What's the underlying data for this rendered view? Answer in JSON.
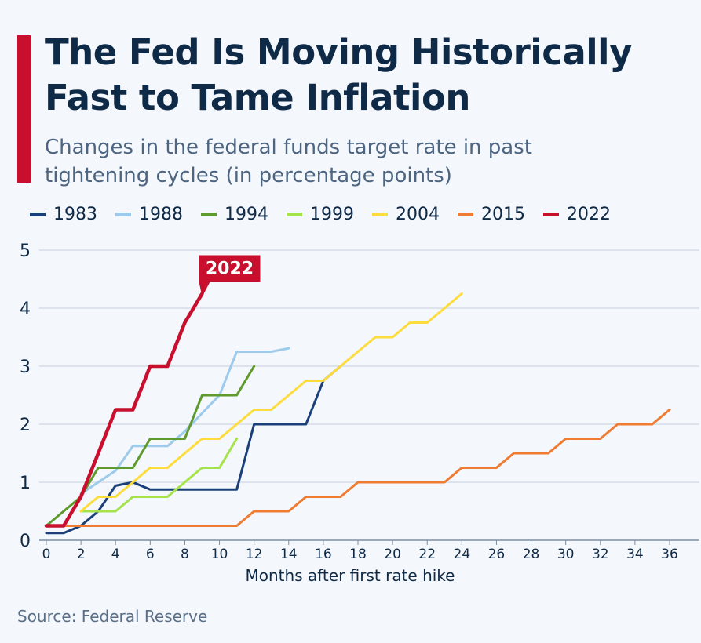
{
  "header": {
    "title": "The Fed Is Moving Historically Fast to Tame Inflation",
    "subtitle": "Changes in the federal funds target rate in past tightening cycles (in percentage points)"
  },
  "footer": {
    "source": "Source: Federal Reserve"
  },
  "chart_data": {
    "type": "line",
    "xlabel": "Months after first rate hike",
    "ylabel": "",
    "xlim": [
      0,
      36
    ],
    "ylim": [
      0,
      5
    ],
    "x_ticks": [
      0,
      2,
      4,
      6,
      8,
      10,
      12,
      14,
      16,
      18,
      20,
      22,
      24,
      26,
      28,
      30,
      32,
      34,
      36
    ],
    "y_ticks": [
      0,
      1,
      2,
      3,
      4,
      5
    ],
    "grid": "horizontal",
    "legend_placement": "top",
    "annotation": {
      "text": "2022",
      "series": "2022",
      "color": "#c8102e"
    },
    "series": [
      {
        "name": "1983",
        "color": "#1b4079",
        "points": [
          [
            0,
            0.125
          ],
          [
            1,
            0.125
          ],
          [
            2,
            0.25
          ],
          [
            3,
            0.5
          ],
          [
            4,
            0.94
          ],
          [
            5,
            1.0
          ],
          [
            6,
            0.875
          ],
          [
            7,
            0.875
          ],
          [
            8,
            0.875
          ],
          [
            9,
            0.875
          ],
          [
            10,
            0.875
          ],
          [
            11,
            0.875
          ],
          [
            12,
            2.0
          ],
          [
            13,
            2.0
          ],
          [
            14,
            2.0
          ],
          [
            15,
            2.0
          ],
          [
            16,
            2.75
          ],
          [
            17,
            3.0
          ]
        ]
      },
      {
        "name": "1988",
        "color": "#9ecbec",
        "points": [
          [
            2,
            0.8
          ],
          [
            3,
            1.0
          ],
          [
            4,
            1.2
          ],
          [
            5,
            1.625
          ],
          [
            6,
            1.625
          ],
          [
            7,
            1.625
          ],
          [
            8,
            1.875
          ],
          [
            9,
            2.19
          ],
          [
            10,
            2.5
          ],
          [
            11,
            3.25
          ],
          [
            12,
            3.25
          ],
          [
            13,
            3.25
          ],
          [
            14,
            3.31
          ]
        ]
      },
      {
        "name": "1994",
        "color": "#5e9a2c",
        "points": [
          [
            0,
            0.25
          ],
          [
            1,
            0.5
          ],
          [
            2,
            0.75
          ],
          [
            3,
            1.25
          ],
          [
            4,
            1.25
          ],
          [
            5,
            1.25
          ],
          [
            6,
            1.75
          ],
          [
            7,
            1.75
          ],
          [
            8,
            1.75
          ],
          [
            9,
            2.5
          ],
          [
            10,
            2.5
          ],
          [
            11,
            2.5
          ],
          [
            12,
            3.0
          ]
        ]
      },
      {
        "name": "1999",
        "color": "#a6e34a",
        "points": [
          [
            2,
            0.5
          ],
          [
            3,
            0.5
          ],
          [
            4,
            0.5
          ],
          [
            5,
            0.75
          ],
          [
            6,
            0.75
          ],
          [
            7,
            0.75
          ],
          [
            8,
            1.0
          ],
          [
            9,
            1.25
          ],
          [
            10,
            1.25
          ],
          [
            11,
            1.75
          ]
        ]
      },
      {
        "name": "2004",
        "color": "#fddc3e",
        "points": [
          [
            2,
            0.5
          ],
          [
            3,
            0.75
          ],
          [
            4,
            0.75
          ],
          [
            5,
            1.0
          ],
          [
            6,
            1.25
          ],
          [
            7,
            1.25
          ],
          [
            8,
            1.5
          ],
          [
            9,
            1.75
          ],
          [
            10,
            1.75
          ],
          [
            11,
            2.0
          ],
          [
            12,
            2.25
          ],
          [
            13,
            2.25
          ],
          [
            14,
            2.5
          ],
          [
            15,
            2.75
          ],
          [
            16,
            2.75
          ],
          [
            17,
            3.0
          ],
          [
            18,
            3.25
          ],
          [
            19,
            3.5
          ],
          [
            20,
            3.5
          ],
          [
            21,
            3.75
          ],
          [
            22,
            3.75
          ],
          [
            23,
            4.0
          ],
          [
            24,
            4.25
          ]
        ]
      },
      {
        "name": "2015",
        "color": "#f07c32",
        "points": [
          [
            0,
            0.25
          ],
          [
            1,
            0.25
          ],
          [
            2,
            0.25
          ],
          [
            3,
            0.25
          ],
          [
            4,
            0.25
          ],
          [
            5,
            0.25
          ],
          [
            6,
            0.25
          ],
          [
            7,
            0.25
          ],
          [
            8,
            0.25
          ],
          [
            9,
            0.25
          ],
          [
            10,
            0.25
          ],
          [
            11,
            0.25
          ],
          [
            12,
            0.5
          ],
          [
            13,
            0.5
          ],
          [
            14,
            0.5
          ],
          [
            15,
            0.75
          ],
          [
            16,
            0.75
          ],
          [
            17,
            0.75
          ],
          [
            18,
            1.0
          ],
          [
            19,
            1.0
          ],
          [
            20,
            1.0
          ],
          [
            21,
            1.0
          ],
          [
            22,
            1.0
          ],
          [
            23,
            1.0
          ],
          [
            24,
            1.25
          ],
          [
            25,
            1.25
          ],
          [
            26,
            1.25
          ],
          [
            27,
            1.5
          ],
          [
            28,
            1.5
          ],
          [
            29,
            1.5
          ],
          [
            30,
            1.75
          ],
          [
            31,
            1.75
          ],
          [
            32,
            1.75
          ],
          [
            33,
            2.0
          ],
          [
            34,
            2.0
          ],
          [
            35,
            2.0
          ],
          [
            36,
            2.25
          ]
        ]
      },
      {
        "name": "2022",
        "color": "#c8102e",
        "points": [
          [
            0,
            0.25
          ],
          [
            1,
            0.25
          ],
          [
            2,
            0.75
          ],
          [
            3,
            1.5
          ],
          [
            4,
            2.25
          ],
          [
            5,
            2.25
          ],
          [
            6,
            3.0
          ],
          [
            7,
            3.0
          ],
          [
            8,
            3.75
          ],
          [
            9,
            4.25
          ]
        ]
      }
    ]
  }
}
